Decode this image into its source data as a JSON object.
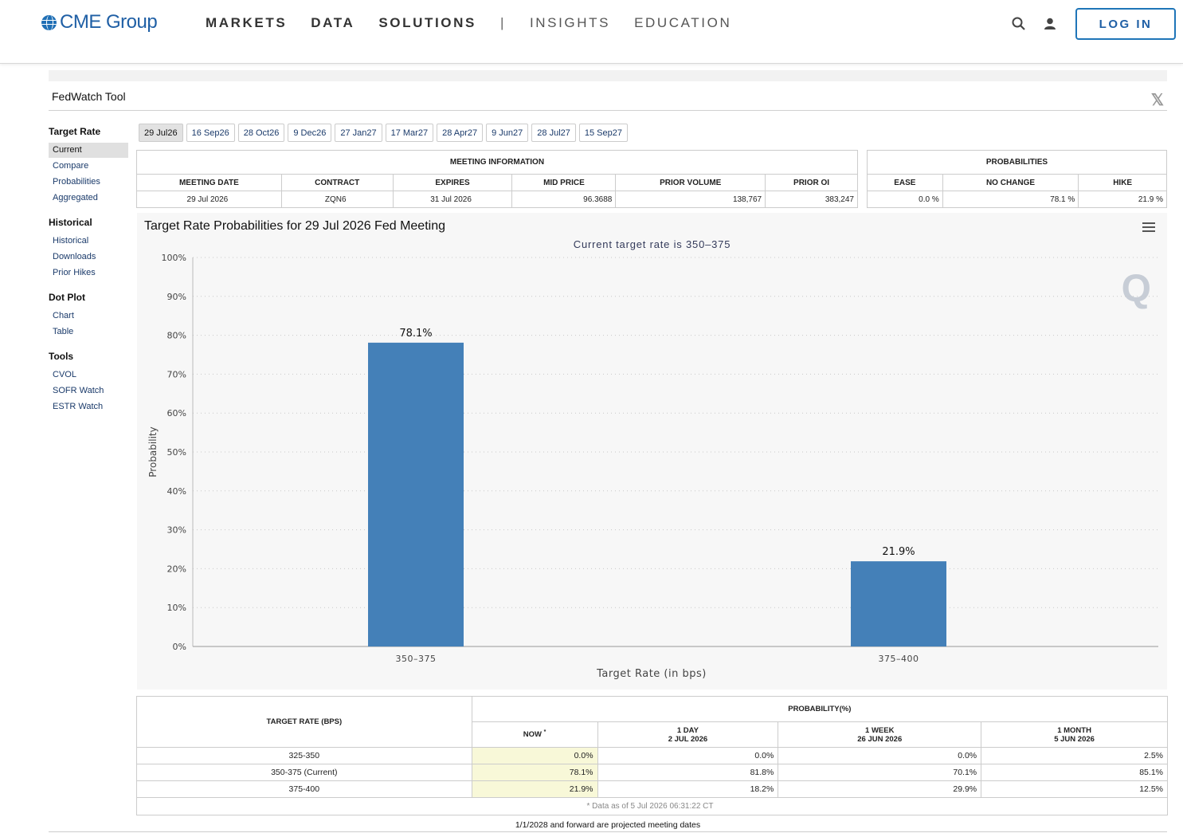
{
  "header": {
    "logo_text": "CME Group",
    "nav": [
      "MARKETS",
      "DATA",
      "SOLUTIONS"
    ],
    "nav_separator": "|",
    "nav_secondary": [
      "INSIGHTS",
      "EDUCATION"
    ],
    "login_label": "LOG IN"
  },
  "tool": {
    "title": "FedWatch Tool"
  },
  "sidebar": {
    "sections": [
      {
        "title": "Target Rate",
        "items": [
          "Current",
          "Compare",
          "Probabilities",
          "Aggregated"
        ],
        "active": "Current"
      },
      {
        "title": "Historical",
        "items": [
          "Historical",
          "Downloads",
          "Prior Hikes"
        ]
      },
      {
        "title": "Dot Plot",
        "items": [
          "Chart",
          "Table"
        ]
      },
      {
        "title": "Tools",
        "items": [
          "CVOL",
          "SOFR Watch",
          "ESTR Watch"
        ]
      }
    ]
  },
  "date_tabs": [
    "29 Jul26",
    "16 Sep26",
    "28 Oct26",
    "9 Dec26",
    "27 Jan27",
    "17 Mar27",
    "28 Apr27",
    "9 Jun27",
    "28 Jul27",
    "15 Sep27"
  ],
  "meeting_info": {
    "group_title": "MEETING INFORMATION",
    "headers": [
      "MEETING DATE",
      "CONTRACT",
      "EXPIRES",
      "MID PRICE",
      "PRIOR VOLUME",
      "PRIOR OI"
    ],
    "values": [
      "29 Jul 2026",
      "ZQN6",
      "31 Jul 2026",
      "96.3688",
      "138,767",
      "383,247"
    ]
  },
  "probabilities": {
    "group_title": "PROBABILITIES",
    "headers": [
      "EASE",
      "NO CHANGE",
      "HIKE"
    ],
    "values": [
      "0.0 %",
      "78.1 %",
      "21.9 %"
    ]
  },
  "chart_data": {
    "type": "bar",
    "title": "Target Rate Probabilities for 29 Jul 2026 Fed Meeting",
    "subtitle": "Current target rate is 350–375",
    "xlabel": "Target Rate (in bps)",
    "ylabel": "Probability",
    "categories": [
      "350–375",
      "375–400"
    ],
    "values": [
      78.1,
      21.9
    ],
    "data_labels": [
      "78.1%",
      "21.9%"
    ],
    "ylim": [
      0,
      100
    ],
    "yticks": [
      "0%",
      "10%",
      "20%",
      "30%",
      "40%",
      "50%",
      "60%",
      "70%",
      "80%",
      "90%",
      "100%"
    ],
    "grid": true,
    "color": "#4480b8"
  },
  "prob_table": {
    "col_target": "TARGET RATE (BPS)",
    "group_title": "PROBABILITY(%)",
    "columns": [
      {
        "l1": "NOW",
        "l2": ""
      },
      {
        "l1": "1 DAY",
        "l2": "2 JUL 2026"
      },
      {
        "l1": "1 WEEK",
        "l2": "26 JUN 2026"
      },
      {
        "l1": "1 MONTH",
        "l2": "5 JUN 2026"
      }
    ],
    "now_marker": "*",
    "rows": [
      {
        "rate": "325-350",
        "values": [
          "0.0%",
          "0.0%",
          "0.0%",
          "2.5%"
        ]
      },
      {
        "rate": "350-375 (Current)",
        "values": [
          "78.1%",
          "81.8%",
          "70.1%",
          "85.1%"
        ]
      },
      {
        "rate": "375-400",
        "values": [
          "21.9%",
          "18.2%",
          "29.9%",
          "12.5%"
        ]
      }
    ],
    "note": "* Data as of 5 Jul 2026 06:31:22 CT"
  },
  "footer_note": "1/1/2028 and forward are projected meeting dates"
}
